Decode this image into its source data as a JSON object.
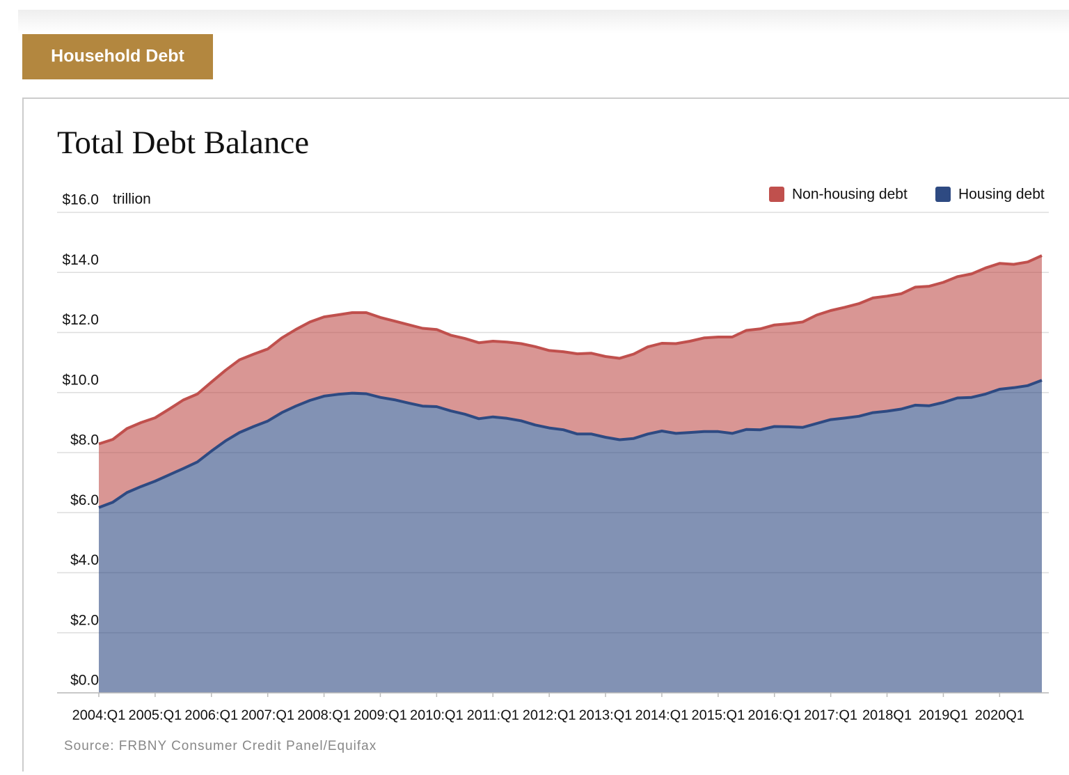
{
  "tab": "Household Debt",
  "chart_data": {
    "type": "stacked-area",
    "title": "Total Debt Balance",
    "y_unit": "trillion",
    "source": "Source: FRBNY Consumer Credit Panel/Equifax",
    "categories": [
      "2004:Q1",
      null,
      null,
      null,
      "2005:Q1",
      null,
      null,
      null,
      "2006:Q1",
      null,
      null,
      null,
      "2007:Q1",
      null,
      null,
      null,
      "2008:Q1",
      null,
      null,
      null,
      "2009:Q1",
      null,
      null,
      null,
      "2010:Q1",
      null,
      null,
      null,
      "2011:Q1",
      null,
      null,
      null,
      "2012:Q1",
      null,
      null,
      null,
      "2013:Q1",
      null,
      null,
      null,
      "2014:Q1",
      null,
      null,
      null,
      "2015:Q1",
      null,
      null,
      null,
      "2016:Q1",
      null,
      null,
      null,
      "2017:Q1",
      null,
      null,
      null,
      "2018Q1",
      null,
      null,
      null,
      "2019Q1",
      null,
      null,
      null,
      "2020Q1",
      null,
      null,
      null
    ],
    "series": [
      {
        "name": "Non-housing debt",
        "color": "#c0504d",
        "values": [
          2.12,
          2.09,
          2.13,
          2.13,
          2.11,
          2.19,
          2.28,
          2.26,
          2.3,
          2.35,
          2.42,
          2.41,
          2.4,
          2.49,
          2.55,
          2.61,
          2.64,
          2.65,
          2.68,
          2.7,
          2.66,
          2.62,
          2.61,
          2.59,
          2.57,
          2.52,
          2.52,
          2.53,
          2.52,
          2.54,
          2.57,
          2.61,
          2.58,
          2.6,
          2.67,
          2.69,
          2.69,
          2.71,
          2.81,
          2.9,
          2.92,
          2.99,
          3.04,
          3.12,
          3.15,
          3.21,
          3.3,
          3.36,
          3.38,
          3.43,
          3.51,
          3.61,
          3.63,
          3.69,
          3.75,
          3.82,
          3.83,
          3.84,
          3.93,
          3.98,
          4.0,
          4.04,
          4.11,
          4.2,
          4.19,
          4.11,
          4.12,
          4.15
        ]
      },
      {
        "name": "Housing debt",
        "color": "#2e4a82",
        "values": [
          6.17,
          6.35,
          6.67,
          6.87,
          7.05,
          7.26,
          7.47,
          7.69,
          8.05,
          8.39,
          8.67,
          8.87,
          9.05,
          9.33,
          9.55,
          9.74,
          9.88,
          9.94,
          9.98,
          9.96,
          9.84,
          9.76,
          9.65,
          9.55,
          9.53,
          9.39,
          9.28,
          9.13,
          9.19,
          9.14,
          9.06,
          8.92,
          8.82,
          8.76,
          8.62,
          8.62,
          8.51,
          8.43,
          8.47,
          8.62,
          8.72,
          8.64,
          8.67,
          8.7,
          8.7,
          8.64,
          8.77,
          8.76,
          8.87,
          8.86,
          8.84,
          8.97,
          9.1,
          9.15,
          9.21,
          9.33,
          9.38,
          9.45,
          9.58,
          9.56,
          9.67,
          9.82,
          9.84,
          9.95,
          10.11,
          10.16,
          10.23,
          10.41
        ]
      }
    ],
    "ylim": [
      0,
      16
    ],
    "yticks": [
      {
        "value": 0,
        "label": "$0.0"
      },
      {
        "value": 2,
        "label": "$2.0"
      },
      {
        "value": 4,
        "label": "$4.0"
      },
      {
        "value": 6,
        "label": "$6.0"
      },
      {
        "value": 8,
        "label": "$8.0"
      },
      {
        "value": 10,
        "label": "$10.0"
      },
      {
        "value": 12,
        "label": "$12.0"
      },
      {
        "value": 14,
        "label": "$14.0"
      },
      {
        "value": 16,
        "label": "$16.0"
      }
    ],
    "grid": true,
    "legend": "top-right"
  }
}
